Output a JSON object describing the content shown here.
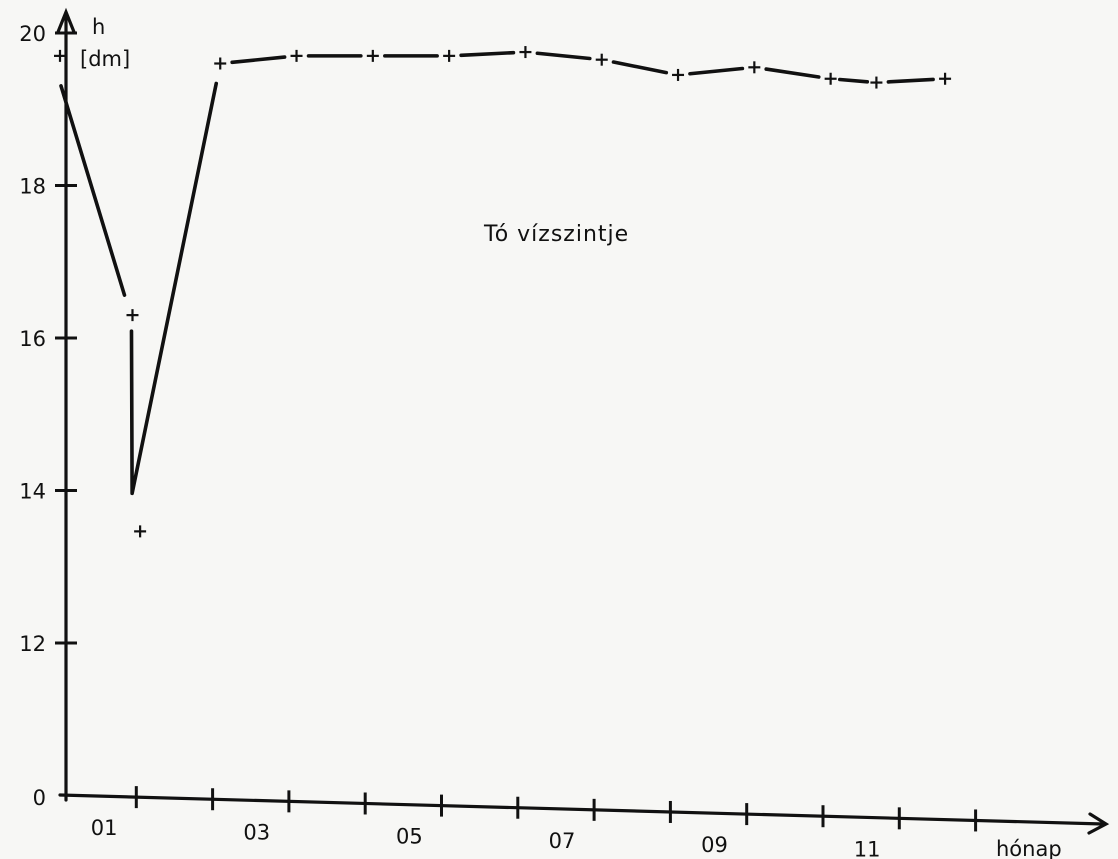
{
  "chart_data": {
    "type": "line",
    "title": "",
    "annotation": "Tó vízszintje",
    "ylabel": "h",
    "yunit": "[dm]",
    "xlabel": "hónap",
    "x_tick_labels": [
      "01",
      "03",
      "05",
      "07",
      "09",
      "11"
    ],
    "y_tick_labels": [
      "0",
      "12",
      "14",
      "16",
      "18",
      "20"
    ],
    "y_axis_break": "0 to 11.3",
    "grid": false,
    "legend": "none",
    "series": [
      {
        "segments": [
          {
            "x": [
              0.5,
              1.45,
              1.55,
              2.6
            ],
            "y": [
              19.7,
              16.3,
              13.7,
              19.6
            ]
          },
          {
            "x": [
              2.6,
              3.6,
              4.6,
              5.6,
              6.6,
              7.6,
              8.6,
              9.6,
              10.6,
              11.2,
              12.1
            ],
            "y": [
              19.6,
              19.7,
              19.7,
              19.7,
              19.75,
              19.65,
              19.45,
              19.55,
              19.4,
              19.35,
              19.4
            ]
          }
        ],
        "marker_points": [
          {
            "x": 0.5,
            "y": 19.7
          },
          {
            "x": 1.45,
            "y": 16.3
          },
          {
            "x": 1.55,
            "y": 13.7
          },
          {
            "x": 2.6,
            "y": 19.6
          },
          {
            "x": 3.6,
            "y": 19.7
          },
          {
            "x": 4.6,
            "y": 19.7
          },
          {
            "x": 5.6,
            "y": 19.7
          },
          {
            "x": 6.6,
            "y": 19.75
          },
          {
            "x": 7.6,
            "y": 19.65
          },
          {
            "x": 8.6,
            "y": 19.45
          },
          {
            "x": 9.6,
            "y": 19.55
          },
          {
            "x": 10.6,
            "y": 19.4
          },
          {
            "x": 11.2,
            "y": 19.35
          },
          {
            "x": 12.1,
            "y": 19.4
          }
        ]
      }
    ]
  }
}
